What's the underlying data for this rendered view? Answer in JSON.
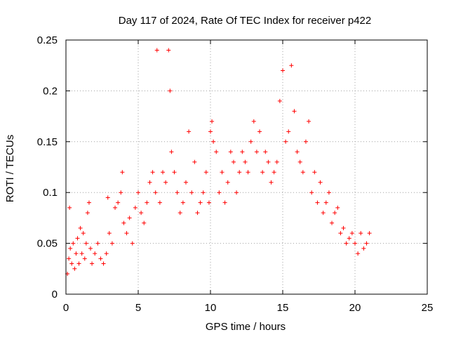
{
  "chart_data": {
    "type": "scatter",
    "title": "Day 117 of 2024, Rate Of TEC Index for receiver p422",
    "xlabel": "GPS time / hours",
    "ylabel": "ROTI / TECUs",
    "xlim": [
      0,
      25
    ],
    "ylim": [
      0,
      0.25
    ],
    "xticks": [
      "0",
      "5",
      "10",
      "15",
      "20",
      "25"
    ],
    "yticks": [
      "0",
      "0.05",
      "0.1",
      "0.15",
      "0.2",
      "0.25"
    ],
    "grid": true,
    "marker": "plus",
    "color": "#ff0000",
    "series": [
      {
        "x": [
          0.1,
          0.2,
          0.25,
          0.3,
          0.4,
          0.5,
          0.6,
          0.7,
          0.8,
          0.9,
          1.0,
          1.1,
          1.2,
          1.3,
          1.4,
          1.5,
          1.6,
          1.7,
          1.8,
          2.0,
          2.2,
          2.4,
          2.6,
          2.8,
          2.9,
          3.0,
          3.2,
          3.4,
          3.6,
          3.8,
          3.9,
          4.0,
          4.2,
          4.4,
          4.6,
          4.8,
          5.0,
          5.2,
          5.4,
          5.6,
          5.8,
          6.0,
          6.2,
          6.3,
          6.5,
          6.7,
          6.9,
          7.1,
          7.2,
          7.3,
          7.5,
          7.7,
          7.9,
          8.1,
          8.3,
          8.5,
          8.7,
          8.9,
          9.1,
          9.3,
          9.5,
          9.7,
          9.9,
          10.0,
          10.1,
          10.2,
          10.4,
          10.6,
          10.8,
          11.0,
          11.2,
          11.4,
          11.6,
          11.8,
          12.0,
          12.2,
          12.4,
          12.6,
          12.8,
          13.0,
          13.2,
          13.4,
          13.6,
          13.8,
          14.0,
          14.2,
          14.4,
          14.6,
          14.8,
          15.0,
          15.2,
          15.4,
          15.6,
          15.8,
          16.0,
          16.2,
          16.4,
          16.6,
          16.8,
          17.0,
          17.2,
          17.4,
          17.6,
          17.8,
          18.0,
          18.2,
          18.4,
          18.6,
          18.8,
          19.0,
          19.2,
          19.4,
          19.6,
          19.8,
          20.0,
          20.2,
          20.4,
          20.6,
          20.8,
          21.0
        ],
        "y": [
          0.02,
          0.035,
          0.085,
          0.045,
          0.03,
          0.05,
          0.025,
          0.04,
          0.055,
          0.03,
          0.065,
          0.04,
          0.06,
          0.035,
          0.05,
          0.08,
          0.09,
          0.045,
          0.03,
          0.04,
          0.05,
          0.035,
          0.03,
          0.04,
          0.095,
          0.06,
          0.05,
          0.085,
          0.09,
          0.1,
          0.12,
          0.07,
          0.06,
          0.075,
          0.05,
          0.085,
          0.1,
          0.08,
          0.07,
          0.09,
          0.11,
          0.12,
          0.1,
          0.24,
          0.09,
          0.12,
          0.11,
          0.24,
          0.2,
          0.14,
          0.12,
          0.1,
          0.08,
          0.09,
          0.11,
          0.16,
          0.1,
          0.13,
          0.08,
          0.09,
          0.1,
          0.12,
          0.09,
          0.16,
          0.17,
          0.15,
          0.14,
          0.1,
          0.12,
          0.09,
          0.11,
          0.14,
          0.13,
          0.1,
          0.12,
          0.14,
          0.13,
          0.12,
          0.15,
          0.17,
          0.14,
          0.16,
          0.12,
          0.14,
          0.13,
          0.11,
          0.12,
          0.13,
          0.19,
          0.22,
          0.15,
          0.16,
          0.225,
          0.18,
          0.14,
          0.13,
          0.12,
          0.15,
          0.17,
          0.1,
          0.12,
          0.09,
          0.11,
          0.08,
          0.09,
          0.1,
          0.07,
          0.08,
          0.085,
          0.06,
          0.065,
          0.05,
          0.055,
          0.06,
          0.05,
          0.04,
          0.06,
          0.045,
          0.05,
          0.06
        ]
      }
    ]
  }
}
